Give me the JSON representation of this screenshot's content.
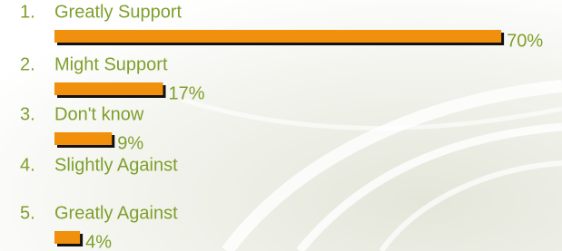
{
  "chart_data": {
    "type": "bar",
    "numbers": [
      "1.",
      "2.",
      "3.",
      "4.",
      "5."
    ],
    "categories": [
      "Greatly Support",
      "Might Support",
      "Don't know",
      "Slightly Against",
      "Greatly Against"
    ],
    "values": [
      70,
      17,
      9,
      0,
      4
    ],
    "value_labels": [
      "70%",
      "17%",
      "9%",
      null,
      "4%"
    ],
    "color": "#f0900c"
  }
}
